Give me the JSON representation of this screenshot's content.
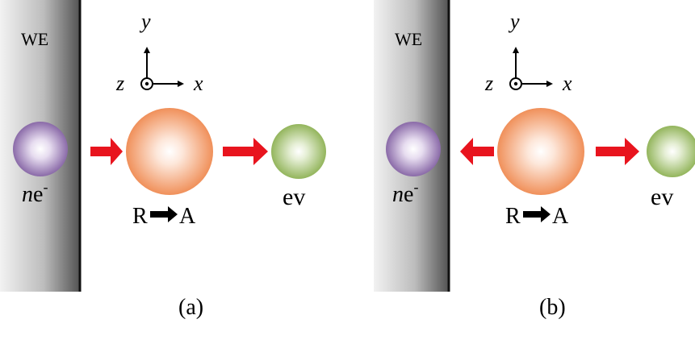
{
  "panels": [
    {
      "electrode_label": "WE",
      "axis": {
        "y": "y",
        "z": "z",
        "x": "x"
      },
      "electron": {
        "n": "n",
        "e": "e",
        "sup": "-"
      },
      "reaction": {
        "reactant": "R",
        "product": "A"
      },
      "species_label": "ev",
      "caption": "(a)",
      "electron_flow": "toward-reactant"
    },
    {
      "electrode_label": "WE",
      "axis": {
        "y": "y",
        "z": "z",
        "x": "x"
      },
      "electron": {
        "n": "n",
        "e": "e",
        "sup": "-"
      },
      "reaction": {
        "reactant": "R",
        "product": "A"
      },
      "species_label": "ev",
      "caption": "(b)",
      "electron_flow": "toward-electrode"
    }
  ],
  "colors": {
    "electrode_dark": "#555555",
    "electrode_light": "#f2f2f2",
    "electrode_edge": "#111111",
    "electron": "#8a6aa8",
    "reactant": "#f0905a",
    "ev_species": "#93b55c",
    "arrow": "#e8141e"
  }
}
